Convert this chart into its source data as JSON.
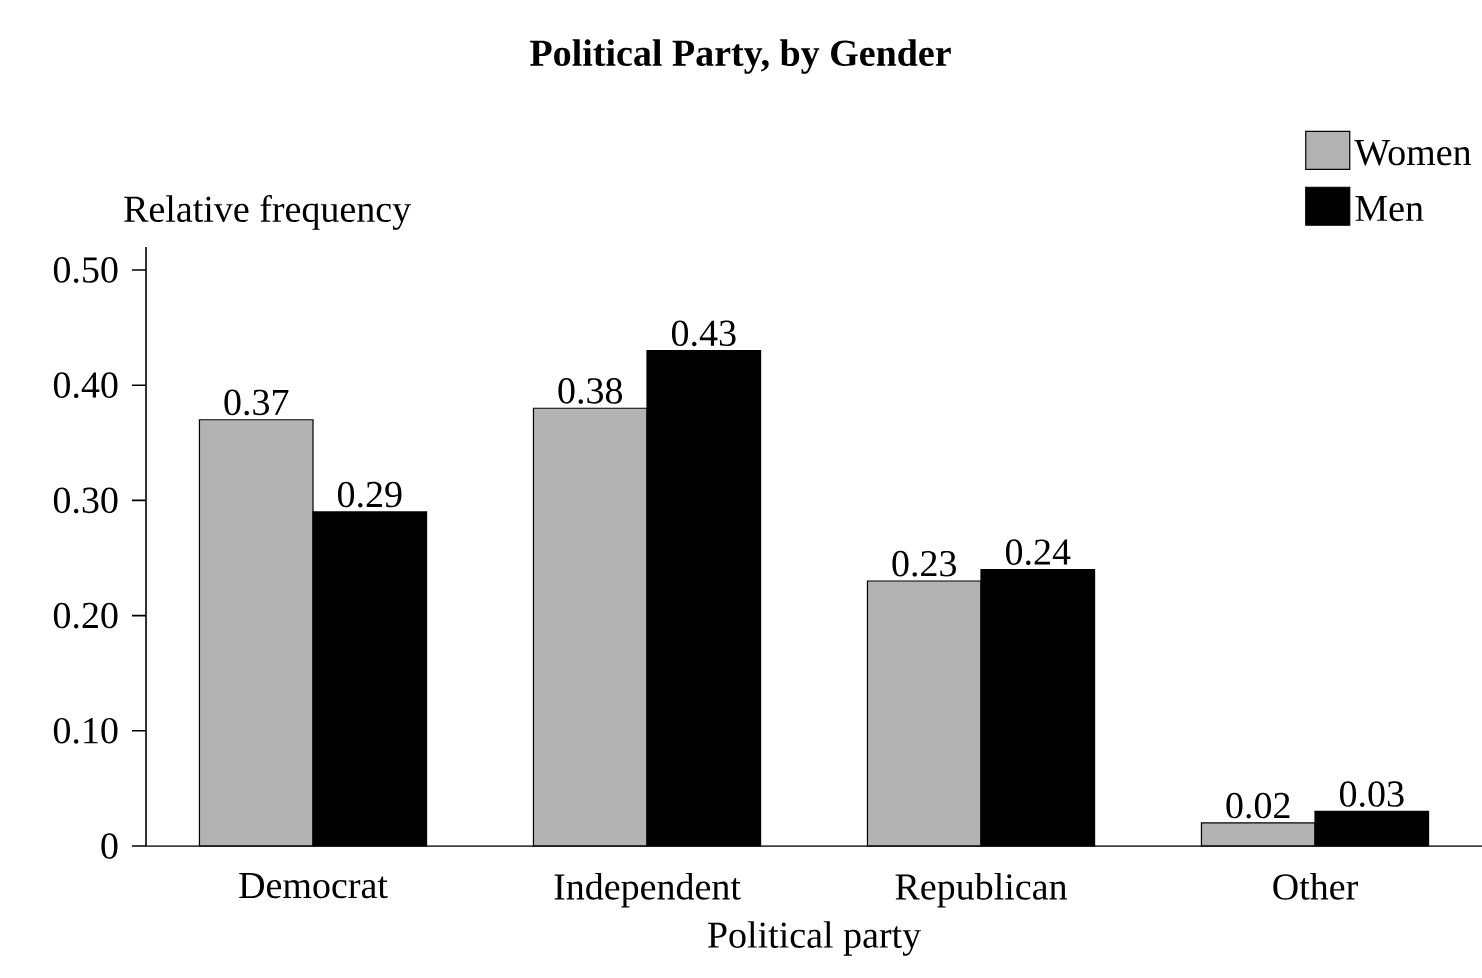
{
  "chart_data": {
    "type": "bar",
    "title": "Political Party, by Gender",
    "xlabel": "Political party",
    "ylabel": "Relative frequency",
    "categories": [
      "Democrat",
      "Independent",
      "Republican",
      "Other"
    ],
    "series": [
      {
        "name": "Women",
        "color": "#b3b3b3",
        "values": [
          0.37,
          0.38,
          0.23,
          0.02
        ]
      },
      {
        "name": "Men",
        "color": "#000000",
        "values": [
          0.29,
          0.43,
          0.24,
          0.03
        ]
      }
    ],
    "ylim": [
      0,
      0.52
    ],
    "yticks": [
      0,
      {
        "value": 0.1,
        "label": "0.10"
      },
      {
        "value": 0.2,
        "label": "0.20"
      },
      {
        "value": 0.3,
        "label": "0.30"
      },
      {
        "value": 0.4,
        "label": "0.40"
      },
      {
        "value": 0.5,
        "label": "0.50"
      }
    ],
    "data_labels": true,
    "legend": "top right"
  }
}
